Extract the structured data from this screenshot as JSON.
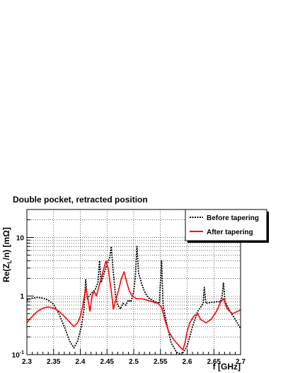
{
  "chart_data": {
    "type": "line",
    "title": "Double pocket, retracted position",
    "xlabel": "f [GHz]",
    "ylabel_parts": {
      "main": "Re(Z",
      "sub": "L",
      "tail": "/n) [mΩ]"
    },
    "xlim": [
      2.3,
      2.7
    ],
    "ylim": [
      0.1,
      30
    ],
    "yscale": "log",
    "grid": true,
    "legend_position": "top-right",
    "x_ticks": [
      "2.3",
      "2.35",
      "2.4",
      "2.45",
      "2.5",
      "2.55",
      "2.6",
      "2.65",
      "2.7"
    ],
    "y_ticks": [
      {
        "base": "10",
        "exp": "-1"
      },
      {
        "base": "1",
        "exp": ""
      },
      {
        "base": "10",
        "exp": ""
      }
    ],
    "series": [
      {
        "name": "Before tapering",
        "color": "#000000",
        "style": "dotted",
        "points": [
          [
            2.3,
            0.85
          ],
          [
            2.31,
            0.92
          ],
          [
            2.32,
            0.95
          ],
          [
            2.33,
            0.92
          ],
          [
            2.34,
            0.85
          ],
          [
            2.35,
            0.72
          ],
          [
            2.36,
            0.5
          ],
          [
            2.37,
            0.3
          ],
          [
            2.38,
            0.17
          ],
          [
            2.388,
            0.13
          ],
          [
            2.395,
            0.17
          ],
          [
            2.402,
            0.3
          ],
          [
            2.407,
            0.6
          ],
          [
            2.41,
            1.9
          ],
          [
            2.413,
            0.9
          ],
          [
            2.42,
            1.1
          ],
          [
            2.428,
            1.3
          ],
          [
            2.433,
            1.7
          ],
          [
            2.436,
            4.0
          ],
          [
            2.439,
            1.7
          ],
          [
            2.445,
            2.5
          ],
          [
            2.45,
            3.5
          ],
          [
            2.455,
            4.5
          ],
          [
            2.458,
            7.0
          ],
          [
            2.461,
            3.0
          ],
          [
            2.466,
            1.0
          ],
          [
            2.47,
            0.7
          ],
          [
            2.475,
            0.6
          ],
          [
            2.48,
            0.75
          ],
          [
            2.485,
            0.7
          ],
          [
            2.49,
            0.85
          ],
          [
            2.495,
            0.8
          ],
          [
            2.5,
            1.2
          ],
          [
            2.503,
            2.2
          ],
          [
            2.506,
            7.0
          ],
          [
            2.509,
            2.5
          ],
          [
            2.515,
            1.6
          ],
          [
            2.52,
            1.2
          ],
          [
            2.525,
            1.0
          ],
          [
            2.53,
            0.9
          ],
          [
            2.54,
            0.8
          ],
          [
            2.548,
            0.75
          ],
          [
            2.552,
            4.0
          ],
          [
            2.555,
            0.7
          ],
          [
            2.56,
            0.4
          ],
          [
            2.565,
            0.25
          ],
          [
            2.57,
            0.16
          ],
          [
            2.58,
            0.11
          ],
          [
            2.59,
            0.1
          ],
          [
            2.6,
            0.14
          ],
          [
            2.61,
            0.3
          ],
          [
            2.62,
            0.55
          ],
          [
            2.63,
            0.75
          ],
          [
            2.632,
            1.4
          ],
          [
            2.635,
            0.75
          ],
          [
            2.645,
            0.78
          ],
          [
            2.655,
            0.8
          ],
          [
            2.662,
            0.8
          ],
          [
            2.665,
            0.95
          ],
          [
            2.668,
            1.7
          ],
          [
            2.671,
            0.8
          ],
          [
            2.68,
            0.55
          ],
          [
            2.69,
            0.4
          ],
          [
            2.7,
            0.28
          ]
        ]
      },
      {
        "name": "After tapering",
        "color": "#ff0000",
        "style": "solid",
        "points": [
          [
            2.3,
            0.35
          ],
          [
            2.31,
            0.45
          ],
          [
            2.32,
            0.55
          ],
          [
            2.33,
            0.62
          ],
          [
            2.34,
            0.65
          ],
          [
            2.35,
            0.62
          ],
          [
            2.36,
            0.55
          ],
          [
            2.37,
            0.45
          ],
          [
            2.38,
            0.36
          ],
          [
            2.388,
            0.3
          ],
          [
            2.395,
            0.35
          ],
          [
            2.4,
            0.45
          ],
          [
            2.405,
            0.7
          ],
          [
            2.41,
            1.4
          ],
          [
            2.414,
            0.9
          ],
          [
            2.418,
            0.55
          ],
          [
            2.422,
            1.0
          ],
          [
            2.426,
            1.2
          ],
          [
            2.43,
            1.0
          ],
          [
            2.436,
            1.6
          ],
          [
            2.442,
            2.5
          ],
          [
            2.448,
            4.0
          ],
          [
            2.452,
            3.0
          ],
          [
            2.458,
            1.2
          ],
          [
            2.462,
            0.6
          ],
          [
            2.467,
            0.9
          ],
          [
            2.472,
            1.3
          ],
          [
            2.477,
            2.0
          ],
          [
            2.482,
            2.6
          ],
          [
            2.487,
            1.7
          ],
          [
            2.492,
            1.2
          ],
          [
            2.497,
            1.0
          ],
          [
            2.505,
            0.9
          ],
          [
            2.515,
            0.9
          ],
          [
            2.525,
            0.85
          ],
          [
            2.535,
            0.8
          ],
          [
            2.545,
            0.75
          ],
          [
            2.552,
            0.65
          ],
          [
            2.558,
            0.4
          ],
          [
            2.565,
            0.25
          ],
          [
            2.575,
            0.18
          ],
          [
            2.585,
            0.14
          ],
          [
            2.592,
            0.12
          ],
          [
            2.596,
            0.16
          ],
          [
            2.6,
            0.25
          ],
          [
            2.605,
            0.35
          ],
          [
            2.612,
            0.45
          ],
          [
            2.62,
            0.5
          ],
          [
            2.625,
            0.4
          ],
          [
            2.635,
            0.35
          ],
          [
            2.645,
            0.4
          ],
          [
            2.655,
            0.55
          ],
          [
            2.663,
            0.8
          ],
          [
            2.668,
            0.9
          ],
          [
            2.675,
            0.6
          ],
          [
            2.685,
            0.5
          ],
          [
            2.695,
            0.55
          ],
          [
            2.7,
            0.58
          ]
        ]
      }
    ]
  }
}
